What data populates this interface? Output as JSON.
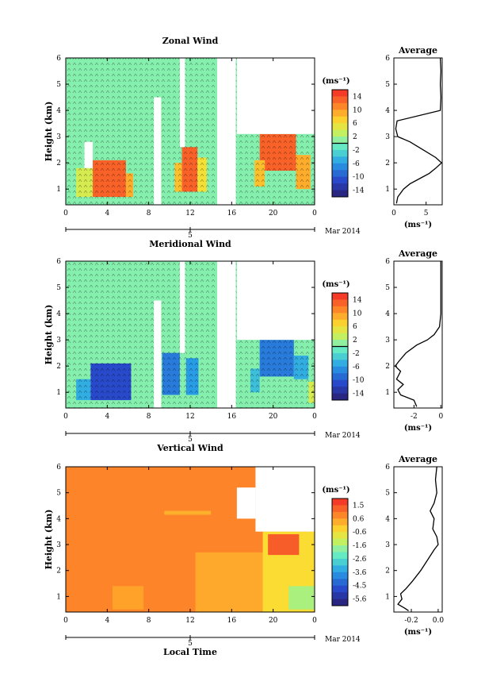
{
  "chart_data": [
    {
      "type": "heatmap",
      "title": "Zonal Wind",
      "ylabel": "Height (km)",
      "xticks": [
        "0",
        "4",
        "8",
        "12",
        "16",
        "20",
        "0"
      ],
      "yticks": [
        "1",
        "2",
        "3",
        "4",
        "5",
        "6"
      ],
      "xlim": [
        0,
        24
      ],
      "ylim": [
        0.4,
        6
      ],
      "date_tick": "5",
      "date_label": "Mar 2014",
      "colorbar": {
        "unit": "(ms⁻¹)",
        "ticks": [
          "14",
          "10",
          "6",
          "2",
          "-2",
          "-6",
          "-10",
          "-14"
        ],
        "range": [
          -16,
          16
        ]
      },
      "regions": [
        {
          "t0": 2.6,
          "t1": 5.8,
          "h0": 0.7,
          "h1": 2.1,
          "v": 13
        },
        {
          "t0": 5.8,
          "t1": 6.5,
          "h0": 0.7,
          "h1": 1.6,
          "v": 9
        },
        {
          "t0": 1.0,
          "t1": 2.6,
          "h0": 0.7,
          "h1": 1.8,
          "v": 4
        },
        {
          "t0": 11.2,
          "t1": 12.7,
          "h0": 0.9,
          "h1": 2.6,
          "v": 13
        },
        {
          "t0": 10.5,
          "t1": 11.2,
          "h0": 0.9,
          "h1": 2.0,
          "v": 8
        },
        {
          "t0": 12.7,
          "t1": 13.6,
          "h0": 0.9,
          "h1": 2.2,
          "v": 6
        },
        {
          "t0": 18.7,
          "t1": 22.2,
          "h0": 1.7,
          "h1": 3.1,
          "v": 13
        },
        {
          "t0": 18.2,
          "t1": 19.2,
          "h0": 1.1,
          "h1": 2.1,
          "v": 8
        },
        {
          "t0": 22.2,
          "t1": 23.6,
          "h0": 1.0,
          "h1": 2.3,
          "v": 9
        }
      ],
      "background": {
        "v": 0.5
      },
      "gaps": [
        {
          "t0": 16.5,
          "t1": 24,
          "h0": 3.1,
          "h1": 6
        },
        {
          "t0": 14.6,
          "t1": 16.4,
          "h0": 0.4,
          "h1": 6
        },
        {
          "t0": 11.0,
          "t1": 11.5,
          "h0": 2.6,
          "h1": 6
        },
        {
          "t0": 8.5,
          "t1": 9.2,
          "h0": 0.4,
          "h1": 4.5
        },
        {
          "t0": 1.8,
          "t1": 2.6,
          "h0": 1.8,
          "h1": 2.8
        }
      ],
      "profile": {
        "title": "Average",
        "xlabel": "(ms⁻¹)",
        "xticks": [
          "0",
          "5"
        ],
        "xlim": [
          0,
          7.5
        ],
        "yticks": [
          "1",
          "2",
          "3",
          "4",
          "5",
          "6"
        ],
        "ylim": [
          0.4,
          6
        ],
        "points": [
          [
            7.2,
            6.0
          ],
          [
            7.3,
            5.5
          ],
          [
            7.2,
            5.0
          ],
          [
            7.3,
            4.5
          ],
          [
            7.2,
            4.0
          ],
          [
            0.5,
            3.6
          ],
          [
            0.3,
            3.3
          ],
          [
            0.6,
            3.0
          ],
          [
            2.5,
            2.8
          ],
          [
            4.5,
            2.5
          ],
          [
            6.5,
            2.2
          ],
          [
            7.4,
            2.0
          ],
          [
            6.5,
            1.8
          ],
          [
            5.5,
            1.6
          ],
          [
            4.0,
            1.4
          ],
          [
            2.5,
            1.2
          ],
          [
            1.5,
            1.0
          ],
          [
            0.6,
            0.7
          ],
          [
            0.4,
            0.45
          ]
        ]
      }
    },
    {
      "type": "heatmap",
      "title": "Meridional Wind",
      "ylabel": "Height (km)",
      "xticks": [
        "0",
        "4",
        "8",
        "12",
        "16",
        "20",
        "0"
      ],
      "yticks": [
        "1",
        "2",
        "3",
        "4",
        "5",
        "6"
      ],
      "xlim": [
        0,
        24
      ],
      "ylim": [
        0.4,
        6
      ],
      "date_tick": "5",
      "date_label": "Mar 2014",
      "colorbar": {
        "unit": "(ms⁻¹)",
        "ticks": [
          "14",
          "10",
          "6",
          "2",
          "-2",
          "-6",
          "-10",
          "-14"
        ],
        "range": [
          -16,
          16
        ]
      },
      "regions": [
        {
          "t0": 2.4,
          "t1": 6.3,
          "h0": 0.7,
          "h1": 2.1,
          "v": -11
        },
        {
          "t0": 1.0,
          "t1": 2.4,
          "h0": 0.7,
          "h1": 1.5,
          "v": -5
        },
        {
          "t0": 9.3,
          "t1": 11.0,
          "h0": 0.9,
          "h1": 2.5,
          "v": -8
        },
        {
          "t0": 11.6,
          "t1": 12.8,
          "h0": 0.9,
          "h1": 2.3,
          "v": -6
        },
        {
          "t0": 18.7,
          "t1": 22.0,
          "h0": 1.6,
          "h1": 3.0,
          "v": -8
        },
        {
          "t0": 22.0,
          "t1": 23.4,
          "h0": 1.5,
          "h1": 2.4,
          "v": -5
        },
        {
          "t0": 17.8,
          "t1": 18.7,
          "h0": 1.0,
          "h1": 1.9,
          "v": -4
        },
        {
          "t0": 23.4,
          "t1": 24.0,
          "h0": 0.6,
          "h1": 1.4,
          "v": 4
        }
      ],
      "background": {
        "v": 0.5
      },
      "gaps": [
        {
          "t0": 16.5,
          "t1": 24,
          "h0": 3.0,
          "h1": 6
        },
        {
          "t0": 14.6,
          "t1": 16.4,
          "h0": 0.4,
          "h1": 6
        },
        {
          "t0": 11.0,
          "t1": 11.5,
          "h0": 2.5,
          "h1": 6
        },
        {
          "t0": 8.5,
          "t1": 9.2,
          "h0": 0.4,
          "h1": 4.5
        }
      ],
      "profile": {
        "title": "Average",
        "xlabel": "(ms⁻¹)",
        "xticks": [
          "-2",
          "0"
        ],
        "xlim": [
          -3.5,
          0.1
        ],
        "yticks": [
          "1",
          "2",
          "3",
          "4",
          "5",
          "6"
        ],
        "ylim": [
          0.4,
          6
        ],
        "points": [
          [
            0.0,
            6.0
          ],
          [
            0.0,
            5.0
          ],
          [
            0.0,
            4.0
          ],
          [
            -0.1,
            3.5
          ],
          [
            -0.5,
            3.2
          ],
          [
            -1.0,
            3.0
          ],
          [
            -1.8,
            2.8
          ],
          [
            -2.6,
            2.5
          ],
          [
            -3.1,
            2.2
          ],
          [
            -3.4,
            2.0
          ],
          [
            -3.0,
            1.8
          ],
          [
            -3.3,
            1.5
          ],
          [
            -2.8,
            1.3
          ],
          [
            -3.2,
            1.1
          ],
          [
            -3.0,
            0.9
          ],
          [
            -2.0,
            0.7
          ],
          [
            -1.8,
            0.45
          ]
        ]
      }
    },
    {
      "type": "heatmap",
      "title": "Vertical Wind",
      "ylabel": "Height (km)",
      "xlabel": "Local Time",
      "xticks": [
        "0",
        "4",
        "8",
        "12",
        "16",
        "20",
        "0"
      ],
      "yticks": [
        "1",
        "2",
        "3",
        "4",
        "5",
        "6"
      ],
      "xlim": [
        0,
        24
      ],
      "ylim": [
        0.4,
        6
      ],
      "date_tick": "5",
      "date_label": "Mar 2014",
      "colorbar": {
        "unit": "(ms⁻¹)",
        "ticks": [
          "1.5",
          "0.6",
          "-0.6",
          "-1.6",
          "-2.6",
          "-3.6",
          "-4.5",
          "-5.6"
        ],
        "range": [
          -6,
          2
        ]
      },
      "regions": [
        {
          "t0": 0,
          "t1": 24,
          "h0": 0.4,
          "h1": 6,
          "v": 0.8
        },
        {
          "t0": 12.5,
          "t1": 20.0,
          "h0": 0.4,
          "h1": 2.7,
          "v": 0.3
        },
        {
          "t0": 19.0,
          "t1": 24.0,
          "h0": 0.4,
          "h1": 3.5,
          "v": -0.4
        },
        {
          "t0": 19.5,
          "t1": 22.5,
          "h0": 2.6,
          "h1": 3.4,
          "v": 1.3
        },
        {
          "t0": 21.5,
          "t1": 24.0,
          "h0": 0.5,
          "h1": 1.4,
          "v": -1.5
        },
        {
          "t0": 4.5,
          "t1": 7.5,
          "h0": 0.5,
          "h1": 1.4,
          "v": 0.4
        },
        {
          "t0": 9.5,
          "t1": 14.0,
          "h0": 4.15,
          "h1": 4.3,
          "v": 0.2
        }
      ],
      "gaps": [
        {
          "t0": 18.3,
          "t1": 24,
          "h0": 3.5,
          "h1": 6
        },
        {
          "t0": 16.5,
          "t1": 18.3,
          "h0": 4.0,
          "h1": 5.2
        }
      ],
      "profile": {
        "title": "Average",
        "xlabel": "(ms⁻¹)",
        "xticks": [
          "-0.2",
          "0.0"
        ],
        "xlim": [
          -0.33,
          0.03
        ],
        "yticks": [
          "1",
          "2",
          "3",
          "4",
          "5",
          "6"
        ],
        "ylim": [
          0.4,
          6
        ],
        "points": [
          [
            -0.01,
            6.0
          ],
          [
            -0.02,
            5.5
          ],
          [
            -0.01,
            5.0
          ],
          [
            -0.03,
            4.6
          ],
          [
            -0.06,
            4.3
          ],
          [
            -0.03,
            4.0
          ],
          [
            -0.04,
            3.6
          ],
          [
            -0.01,
            3.3
          ],
          [
            0.0,
            3.0
          ],
          [
            -0.03,
            2.8
          ],
          [
            -0.08,
            2.4
          ],
          [
            -0.13,
            2.0
          ],
          [
            -0.19,
            1.6
          ],
          [
            -0.24,
            1.3
          ],
          [
            -0.28,
            1.1
          ],
          [
            -0.27,
            0.9
          ],
          [
            -0.3,
            0.7
          ],
          [
            -0.25,
            0.55
          ],
          [
            -0.22,
            0.45
          ]
        ]
      }
    }
  ]
}
